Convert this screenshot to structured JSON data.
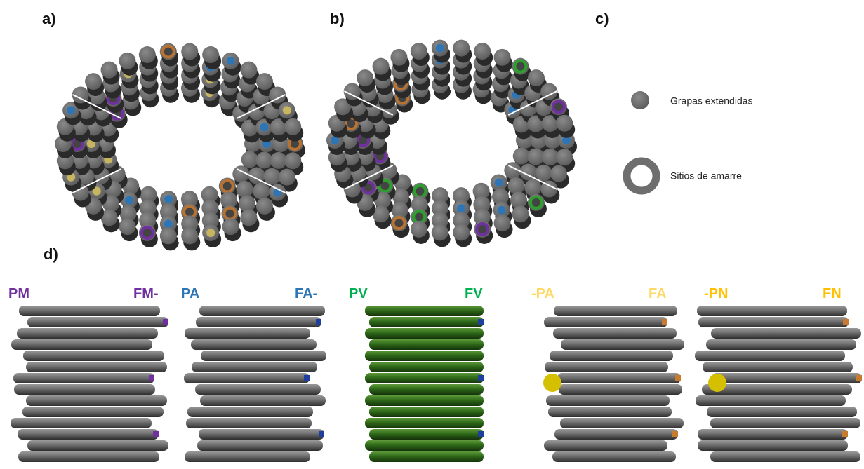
{
  "panels": {
    "a": "a)",
    "b": "b)",
    "c": "c)",
    "d": "d)"
  },
  "legend": [
    {
      "label": "Grapas extendidas"
    },
    {
      "label": "Sitios de amarre"
    }
  ],
  "bundles": [
    {
      "left": "PM",
      "right": "FM-"
    },
    {
      "left": "PA",
      "right": "FA-"
    },
    {
      "left": "PV",
      "right": "FV"
    },
    {
      "left": "-PA",
      "right": "FA"
    },
    {
      "left": "-PN",
      "right": "FN"
    }
  ]
}
